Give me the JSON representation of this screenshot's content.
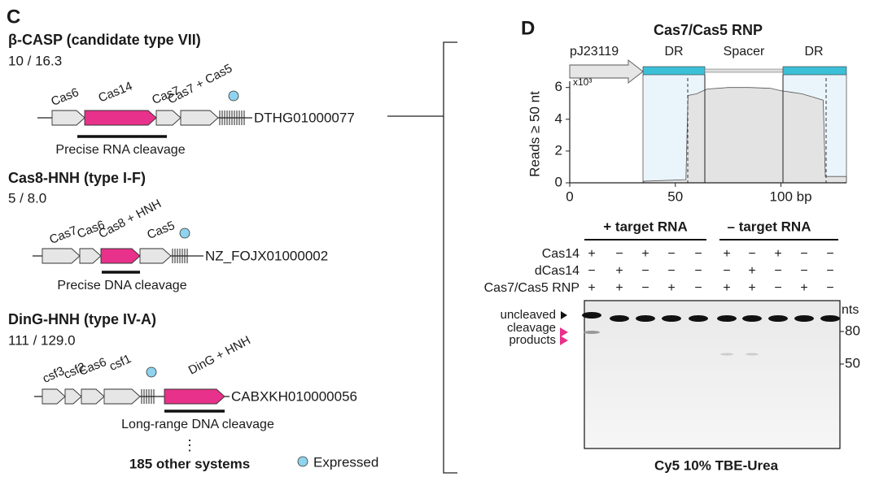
{
  "panel_c": {
    "letter": "C",
    "systems": [
      {
        "title": "β-CASP (candidate type VII)",
        "ratio": "10 / 16.3",
        "genes": [
          "Cas6",
          "Cas14",
          "Cas7",
          "Cas7 + Cas5"
        ],
        "accession": "DTHG01000077",
        "activity": "Precise RNA cleavage"
      },
      {
        "title": "Cas8-HNH (type I-F)",
        "ratio": "5 / 8.0",
        "genes": [
          "Cas7",
          "Cas6",
          "Cas8 + HNH",
          "Cas5"
        ],
        "accession": "NZ_FOJX01000002",
        "activity": "Precise DNA cleavage"
      },
      {
        "title": "DinG-HNH (type IV-A)",
        "ratio": "111 / 129.0",
        "genes": [
          "csf3",
          "csf2",
          "Cas6",
          "csf1",
          "DinG + HNH"
        ],
        "accession": "CABXKH010000056",
        "activity": "Long-range DNA cleavage"
      }
    ],
    "more": "⋮",
    "other": "185 other systems",
    "legend": "Expressed"
  },
  "panel_d": {
    "letter": "D",
    "title": "Cas7/Cas5 RNP",
    "map": [
      "pJ23119",
      "DR",
      "Spacer",
      "DR"
    ],
    "groups": [
      "+ target RNA",
      "– target RNA"
    ],
    "rows": [
      {
        "name": "Cas14",
        "lanes": [
          "+",
          "−",
          "+",
          "−",
          "−",
          "+",
          "−",
          "+",
          "−",
          "−"
        ]
      },
      {
        "name": "dCas14",
        "lanes": [
          "−",
          "+",
          "−",
          "−",
          "−",
          "−",
          "+",
          "−",
          "−",
          "−"
        ]
      },
      {
        "name": "Cas7/Cas5 RNP",
        "lanes": [
          "+",
          "+",
          "−",
          "+",
          "−",
          "+",
          "+",
          "−",
          "+",
          "−"
        ]
      }
    ],
    "gel_labels": [
      "uncleaved",
      "cleavage",
      "products"
    ],
    "size_unit": "nts",
    "markers": [
      "80",
      "50"
    ],
    "caption": "Cy5 10% TBE-Urea"
  },
  "chart_data": {
    "type": "area",
    "y_label": "Reads ≥ 50 nt",
    "y_scale_label": "x10³",
    "color": "#e3e3e3",
    "x": [
      35,
      55,
      56,
      60,
      65,
      75,
      85,
      95,
      100,
      105,
      110,
      115,
      120,
      121,
      131
    ],
    "values": [
      0.1,
      0.2,
      5.5,
      5.6,
      5.9,
      6.0,
      6.0,
      5.95,
      5.8,
      5.7,
      5.6,
      5.4,
      5.2,
      0.4,
      0.4
    ],
    "xlim": [
      0,
      131
    ],
    "ylim": [
      0,
      6.7
    ],
    "xticks": [
      0,
      50,
      {
        "value": 100,
        "label": "100 bp"
      }
    ],
    "yticks": [
      0,
      2,
      4,
      6
    ]
  }
}
